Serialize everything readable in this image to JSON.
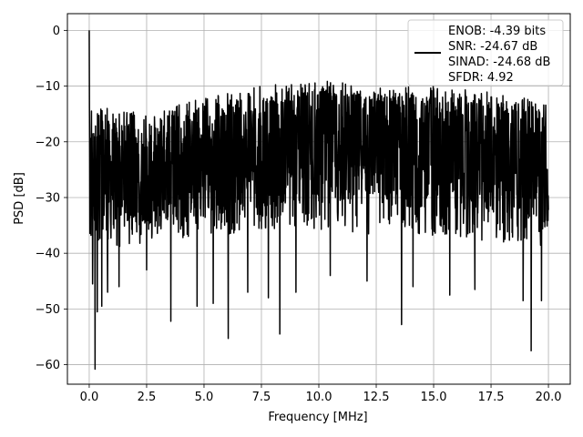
{
  "chart_data": {
    "type": "line",
    "xlabel": "Frequency [MHz]",
    "ylabel": "PSD [dB]",
    "xlim": [
      -0.95,
      20.95
    ],
    "ylim": [
      -63.5,
      3.0
    ],
    "x_ticks": [
      0.0,
      2.5,
      5.0,
      7.5,
      10.0,
      12.5,
      15.0,
      17.5,
      20.0
    ],
    "x_tick_labels": [
      "0.0",
      "2.5",
      "5.0",
      "7.5",
      "10.0",
      "12.5",
      "15.0",
      "17.5",
      "20.0"
    ],
    "y_ticks": [
      0,
      -10,
      -20,
      -30,
      -40,
      -50,
      -60
    ],
    "y_tick_labels": [
      "0",
      "−10",
      "−20",
      "−30",
      "−40",
      "−50",
      "−60"
    ],
    "grid": true,
    "legend_position": "top-right",
    "legend_text": [
      "ENOB: -4.39 bits",
      "SNR: -24.67 dB",
      "SINAD: -24.68 dB",
      "SFDR: 4.92"
    ],
    "series": [
      {
        "color": "#000000",
        "x_range": [
          0.0,
          20.0
        ],
        "points_count": 2049,
        "spike": {
          "x": 0.0,
          "y": 0.0
        },
        "upper_envelope": {
          "x": [
            0.0,
            2.5,
            5.0,
            7.5,
            10.0,
            12.5,
            15.0,
            17.5,
            20.0
          ],
          "y": [
            -13,
            -15,
            -12,
            -10,
            -9,
            -10,
            -10,
            -11,
            -13
          ]
        },
        "noise_floor_center": {
          "x": [
            0.0,
            2.5,
            5.0,
            7.5,
            10.0,
            12.5,
            15.0,
            17.5,
            20.0
          ],
          "y": [
            -26,
            -26,
            -24,
            -22,
            -21,
            -21,
            -22,
            -23,
            -25
          ]
        },
        "lower_typical": {
          "x": [
            0.0,
            2.5,
            5.0,
            7.5,
            10.0,
            12.5,
            15.0,
            17.5,
            20.0
          ],
          "y": [
            -40,
            -38,
            -37,
            -36,
            -36,
            -37,
            -37,
            -38,
            -39
          ]
        },
        "deep_nulls": [
          {
            "x": 0.15,
            "y": -45.5
          },
          {
            "x": 0.25,
            "y": -60.8
          },
          {
            "x": 0.35,
            "y": -50.5
          },
          {
            "x": 0.55,
            "y": -49.5
          },
          {
            "x": 0.8,
            "y": -47.0
          },
          {
            "x": 1.3,
            "y": -46.0
          },
          {
            "x": 2.5,
            "y": -43.0
          },
          {
            "x": 3.55,
            "y": -52.2
          },
          {
            "x": 4.7,
            "y": -49.5
          },
          {
            "x": 5.4,
            "y": -49.0
          },
          {
            "x": 6.05,
            "y": -55.3
          },
          {
            "x": 6.9,
            "y": -47.0
          },
          {
            "x": 7.8,
            "y": -48.0
          },
          {
            "x": 8.3,
            "y": -54.5
          },
          {
            "x": 9.0,
            "y": -47.0
          },
          {
            "x": 10.5,
            "y": -44.0
          },
          {
            "x": 12.1,
            "y": -45.0
          },
          {
            "x": 13.6,
            "y": -52.8
          },
          {
            "x": 14.1,
            "y": -46.0
          },
          {
            "x": 15.7,
            "y": -47.5
          },
          {
            "x": 16.8,
            "y": -46.5
          },
          {
            "x": 18.9,
            "y": -48.5
          },
          {
            "x": 19.25,
            "y": -57.5
          },
          {
            "x": 19.7,
            "y": -48.5
          }
        ]
      }
    ]
  }
}
